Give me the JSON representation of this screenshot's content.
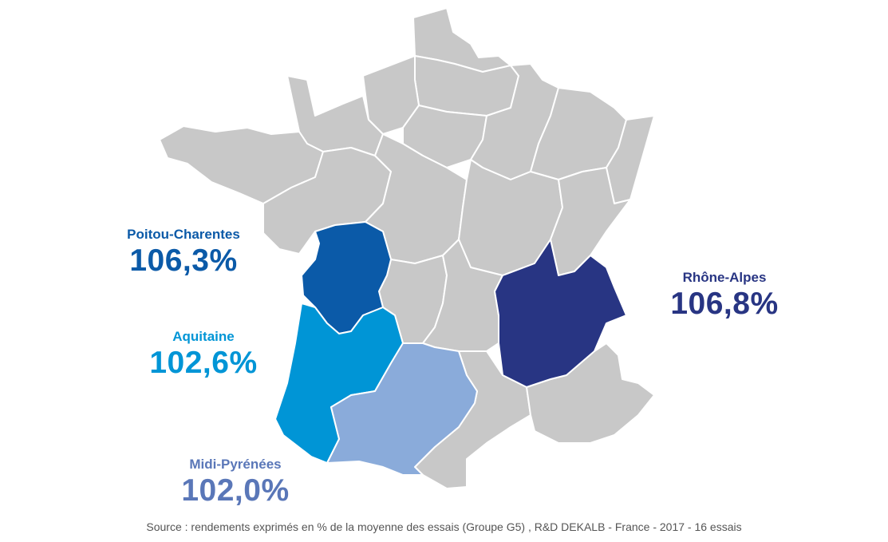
{
  "colors": {
    "grey_region": "#c8c8c8",
    "poitou_charentes": "#0b5aa8",
    "aquitaine": "#0095d6",
    "midi_pyrenees": "#8aabda",
    "rhone_alpes": "#283583",
    "label_poitou": "#0b5aa8",
    "label_aquitaine": "#0095d6",
    "label_midi": "#5a77b8",
    "label_rhone": "#283583"
  },
  "regions": {
    "poitou_charentes": {
      "name": "Poitou-Charentes",
      "value": "106,3%"
    },
    "aquitaine": {
      "name": "Aquitaine",
      "value": "102,6%"
    },
    "midi_pyrenees": {
      "name": "Midi-Pyrénées",
      "value": "102,0%"
    },
    "rhone_alpes": {
      "name": "Rhône-Alpes",
      "value": "106,8%"
    }
  },
  "source": "Source : rendements exprimés en % de la moyenne des essais (Groupe G5) , R&D DEKALB - France - 2017 - 16 essais"
}
